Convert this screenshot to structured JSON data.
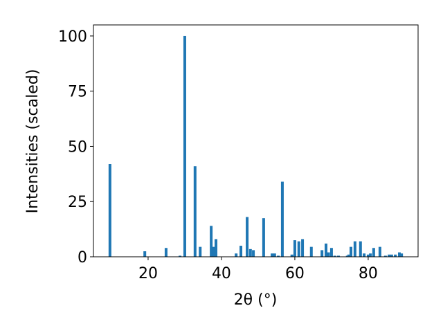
{
  "chart_data": {
    "type": "bar",
    "xlabel": "2θ (°)",
    "ylabel": "Intensities (scaled)",
    "x": [
      9.6,
      19.1,
      24.9,
      28.7,
      30.0,
      32.8,
      34.2,
      37.2,
      37.9,
      38.5,
      44.0,
      45.3,
      47.0,
      47.9,
      48.7,
      51.5,
      53.8,
      54.5,
      55.5,
      56.6,
      59.2,
      60.0,
      61.1,
      62.1,
      64.5,
      67.4,
      68.5,
      69.2,
      70.0,
      70.9,
      71.9,
      74.3,
      74.7,
      75.3,
      76.4,
      77.9,
      78.9,
      80.0,
      80.6,
      81.5,
      83.2,
      84.7,
      85.7,
      86.4,
      87.4,
      88.5,
      89.1
    ],
    "values": [
      42,
      2.5,
      4,
      0.5,
      100,
      41,
      4.5,
      14,
      4.5,
      8,
      1.5,
      5,
      18,
      3.5,
      3,
      17.5,
      1.5,
      1.5,
      0.5,
      34,
      1,
      7.5,
      7,
      8,
      4.5,
      3,
      6,
      2,
      4,
      0.5,
      0.5,
      0.5,
      1,
      4.5,
      7,
      7,
      1.5,
      1,
      1.5,
      4,
      4.5,
      0.5,
      1,
      1,
      1,
      2,
      1.5
    ],
    "color": "#1f77b4",
    "xlim": [
      5.1,
      93.6
    ],
    "ylim": [
      0,
      105
    ],
    "xticks": [
      20,
      40,
      60,
      80
    ],
    "yticks": [
      0,
      25,
      50,
      75,
      100
    ]
  }
}
